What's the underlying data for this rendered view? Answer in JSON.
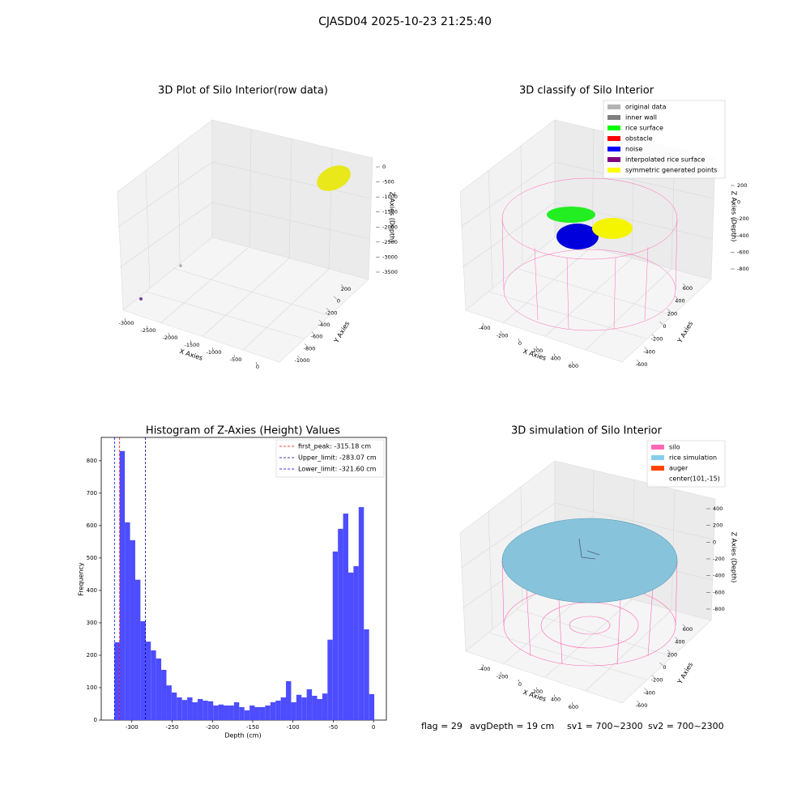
{
  "title": "CJASD04 2025-10-23 21:25:40",
  "footer": [
    "flag = 29",
    "avgDepth = 19 cm",
    "sv1 = 700~2300",
    "sv2 = 700~2300"
  ],
  "chart_data": [
    {
      "type": "scatter3d",
      "title": "3D Plot of Silo Interior(row data)",
      "xlabel": "X Axies",
      "ylabel": "Y Axies",
      "zlabel": "Z Axies (Depth)",
      "xlim": [
        -3100,
        100
      ],
      "xticks": [
        -3000,
        -2500,
        -2000,
        -1500,
        -1000,
        -500,
        0
      ],
      "ylim": [
        -1100,
        300
      ],
      "yticks": [
        -1000,
        -800,
        -600,
        -400,
        -200,
        0,
        200
      ],
      "zlim": [
        -3700,
        200
      ],
      "zticks": [
        -3500,
        -3000,
        -2500,
        -2000,
        -1500,
        -1000,
        -500,
        0
      ]
    },
    {
      "type": "scatter3d",
      "title": "3D classify of Silo Interior",
      "xlabel": "X Axies",
      "ylabel": "Y Axies",
      "zlabel": "Z Axies (Depth)",
      "xlim": [
        -500,
        700
      ],
      "xticks": [
        -400,
        -200,
        0,
        200,
        400,
        600
      ],
      "ylim": [
        -700,
        700
      ],
      "yticks": [
        -600,
        -400,
        -200,
        0,
        200,
        400,
        600
      ],
      "zlim": [
        -900,
        300
      ],
      "zticks": [
        -800,
        -600,
        -400,
        -200,
        0,
        200
      ],
      "legend": [
        {
          "name": "original data",
          "color": "#b3b3b3"
        },
        {
          "name": "inner wall",
          "color": "#808080"
        },
        {
          "name": "rice surface",
          "color": "#00ff00"
        },
        {
          "name": "obstacle",
          "color": "#ff0000"
        },
        {
          "name": "noise",
          "color": "#0000ff"
        },
        {
          "name": "interpolated rice surface",
          "color": "#800080"
        },
        {
          "name": "symmetric generated points",
          "color": "#ffff00"
        }
      ]
    },
    {
      "type": "histogram",
      "title": "Histogram of Z-Axies (Height) Values",
      "xlabel": "Depth (cm)",
      "ylabel": "Frequency",
      "color": "#4d4dff",
      "bins": [
        -321.6,
        -315.15,
        -308.7,
        -302.24,
        -295.79,
        -289.34,
        -282.89,
        -276.44,
        -269.98,
        -263.53,
        -257.08,
        -250.63,
        -244.18,
        -237.72,
        -231.27,
        -224.82,
        -218.37,
        -211.92,
        -205.46,
        -199.01,
        -192.56,
        -186.11,
        -179.66,
        -173.2,
        -166.75,
        -160.3,
        -153.85,
        -147.4,
        -140.94,
        -134.49,
        -128.04,
        -121.59,
        -115.14,
        -108.68,
        -102.23,
        -95.78,
        -89.33,
        -82.88,
        -76.42,
        -69.97,
        -63.52,
        -57.07,
        -50.62,
        -44.16,
        -37.71,
        -31.26,
        -24.81,
        -18.36,
        -11.9,
        -5.45,
        1
      ],
      "values": [
        240,
        830,
        610,
        555,
        433,
        305,
        242,
        215,
        190,
        155,
        107,
        85,
        70,
        62,
        70,
        55,
        65,
        60,
        58,
        45,
        48,
        45,
        45,
        55,
        40,
        30,
        45,
        40,
        40,
        45,
        55,
        60,
        70,
        120,
        55,
        78,
        70,
        95,
        75,
        65,
        82,
        248,
        520,
        590,
        637,
        455,
        475,
        657,
        280,
        80
      ],
      "xlim": [
        -338,
        16
      ],
      "xticks": [
        -300,
        -250,
        -200,
        -150,
        -100,
        -50,
        0
      ],
      "ylim": [
        0,
        872
      ],
      "yticks": [
        0,
        100,
        200,
        300,
        400,
        500,
        600,
        700,
        800
      ],
      "lines": [
        {
          "name": "first_peak: -315.18 cm",
          "value": -315.18,
          "color": "#ff0000"
        },
        {
          "name": "Upper_limit: -283.07 cm",
          "value": -283.07,
          "color": "#00008b"
        },
        {
          "name": "Lower_limit: -321.60 cm",
          "value": -321.6,
          "color": "#0000ff"
        }
      ]
    },
    {
      "type": "surface3d",
      "title": "3D simulation of Silo Interior",
      "xlabel": "X Axies",
      "ylabel": "Y Axies",
      "zlabel": "Z Axies (Depth)",
      "xlim": [
        -500,
        700
      ],
      "xticks": [
        -400,
        -200,
        0,
        200,
        400,
        600
      ],
      "ylim": [
        -700,
        700
      ],
      "yticks": [
        -600,
        -400,
        -200,
        0,
        200,
        400,
        600
      ],
      "zlim": [
        -900,
        500
      ],
      "zticks": [
        -800,
        -600,
        -400,
        -200,
        0,
        200,
        400
      ],
      "legend": [
        {
          "name": "silo",
          "color": "#ff69b4"
        },
        {
          "name": "rice simulation",
          "color": "#87ceeb"
        },
        {
          "name": "auger",
          "color": "#ff4500"
        },
        {
          "name": "center(101,-15)",
          "color": "#ffffff"
        }
      ]
    }
  ]
}
